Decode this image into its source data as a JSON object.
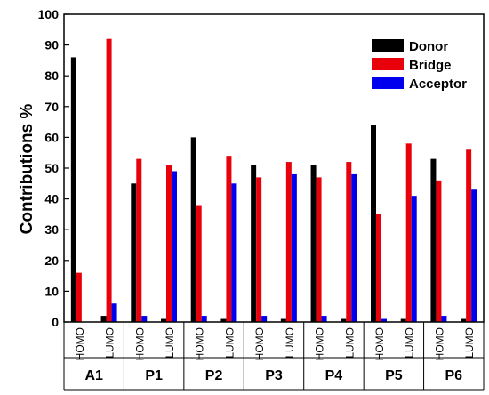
{
  "chart_data": {
    "type": "bar",
    "ylabel": "Contributions %",
    "ylim": [
      0,
      100
    ],
    "y_ticks": [
      0,
      10,
      20,
      30,
      40,
      50,
      60,
      70,
      80,
      90,
      100
    ],
    "orbitals": [
      "HOMO",
      "LUMO"
    ],
    "groups": [
      "A1",
      "P1",
      "P2",
      "P3",
      "P4",
      "P5",
      "P6"
    ],
    "series": [
      {
        "name": "Donor",
        "color": "#000000",
        "values": [
          86,
          2,
          45,
          1,
          60,
          1,
          51,
          1,
          51,
          1,
          64,
          1,
          53,
          1
        ]
      },
      {
        "name": "Bridge",
        "color": "#e8000b",
        "values": [
          16,
          92,
          53,
          51,
          38,
          54,
          47,
          52,
          47,
          52,
          35,
          58,
          46,
          56
        ]
      },
      {
        "name": "Acceptor",
        "color": "#0000ee",
        "values": [
          0,
          6,
          2,
          49,
          2,
          45,
          2,
          48,
          2,
          48,
          1,
          41,
          2,
          43
        ]
      }
    ],
    "legend_position": "top-right",
    "grid": false
  }
}
